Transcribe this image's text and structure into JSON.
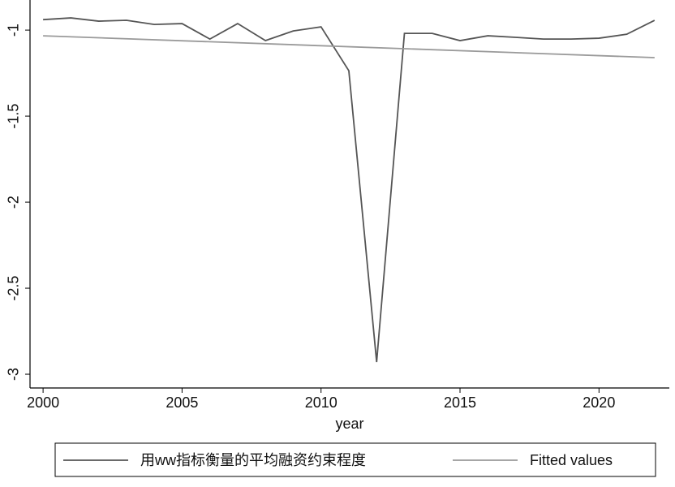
{
  "chart_data": {
    "type": "line",
    "x_label": "year",
    "xlim": [
      1999.53,
      2022.53
    ],
    "xticks": [
      2000,
      2005,
      2010,
      2015,
      2020
    ],
    "ylim": [
      -3.08,
      -0.825
    ],
    "yticks": [
      -3,
      -2.5,
      -2,
      -1.5,
      -1
    ],
    "legend": "bottom",
    "series": [
      {
        "name": "用ww指标衡量的平均融资约束程度",
        "color": "#555555",
        "x": [
          2000,
          2001,
          2002,
          2003,
          2004,
          2005,
          2006,
          2007,
          2008,
          2009,
          2010,
          2011,
          2012,
          2013,
          2014,
          2015,
          2016,
          2017,
          2018,
          2019,
          2020,
          2021,
          2022
        ],
        "values": [
          -0.939,
          -0.929,
          -0.948,
          -0.943,
          -0.967,
          -0.962,
          -1.052,
          -0.962,
          -1.061,
          -1.005,
          -0.981,
          -1.236,
          -2.929,
          -1.019,
          -1.019,
          -1.061,
          -1.033,
          -1.042,
          -1.052,
          -1.052,
          -1.047,
          -1.024,
          -0.943
        ]
      },
      {
        "name": "Fitted values",
        "color": "#9a9a9a",
        "x": [
          2000,
          2022
        ],
        "values": [
          -1.033,
          -1.16
        ]
      }
    ]
  }
}
